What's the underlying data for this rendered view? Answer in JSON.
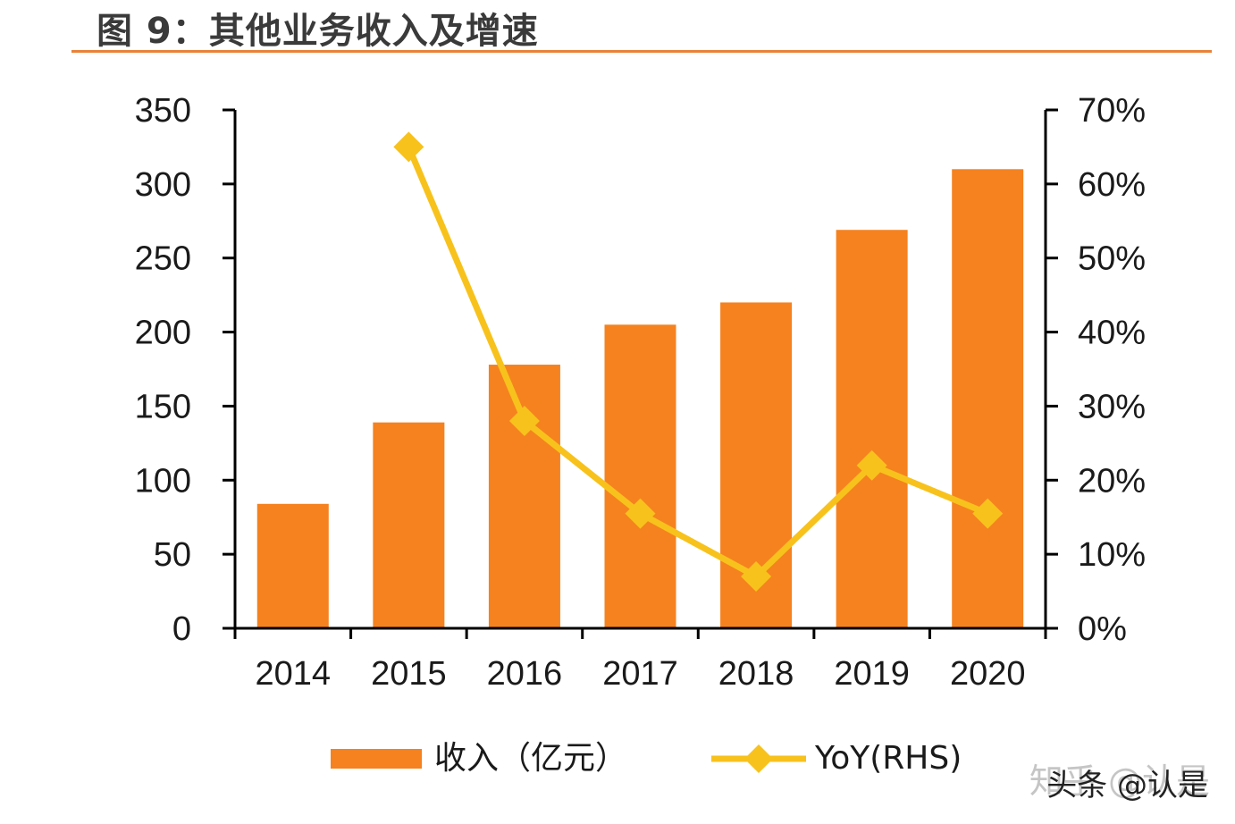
{
  "header": {
    "title": "图 9：其他业务收入及增速"
  },
  "chart_data": {
    "type": "bar",
    "categories": [
      "2014",
      "2015",
      "2016",
      "2017",
      "2018",
      "2019",
      "2020"
    ],
    "series": [
      {
        "name": "收入（亿元）",
        "type": "bar",
        "axis": "left",
        "color": "#f5821f",
        "values": [
          84,
          139,
          178,
          205,
          220,
          269,
          310
        ]
      },
      {
        "name": "YoY(RHS)",
        "type": "line",
        "axis": "right",
        "color": "#f8c21c",
        "marker": "diamond",
        "values": [
          null,
          65,
          28,
          15.5,
          7,
          22,
          15.5
        ]
      }
    ],
    "y_left": {
      "range": [
        0,
        350
      ],
      "ticks": [
        "0",
        "50",
        "100",
        "150",
        "200",
        "250",
        "300",
        "350"
      ]
    },
    "y_right": {
      "range": [
        0,
        70
      ],
      "ticks": [
        "0%",
        "10%",
        "20%",
        "30%",
        "40%",
        "50%",
        "60%",
        "70%"
      ]
    },
    "legend": {
      "position": "bottom",
      "items": [
        "收入（亿元）",
        "YoY(RHS)"
      ]
    },
    "grid": false
  },
  "watermarks": {
    "back": "知乎 @认是",
    "front": "头条 @认是"
  }
}
